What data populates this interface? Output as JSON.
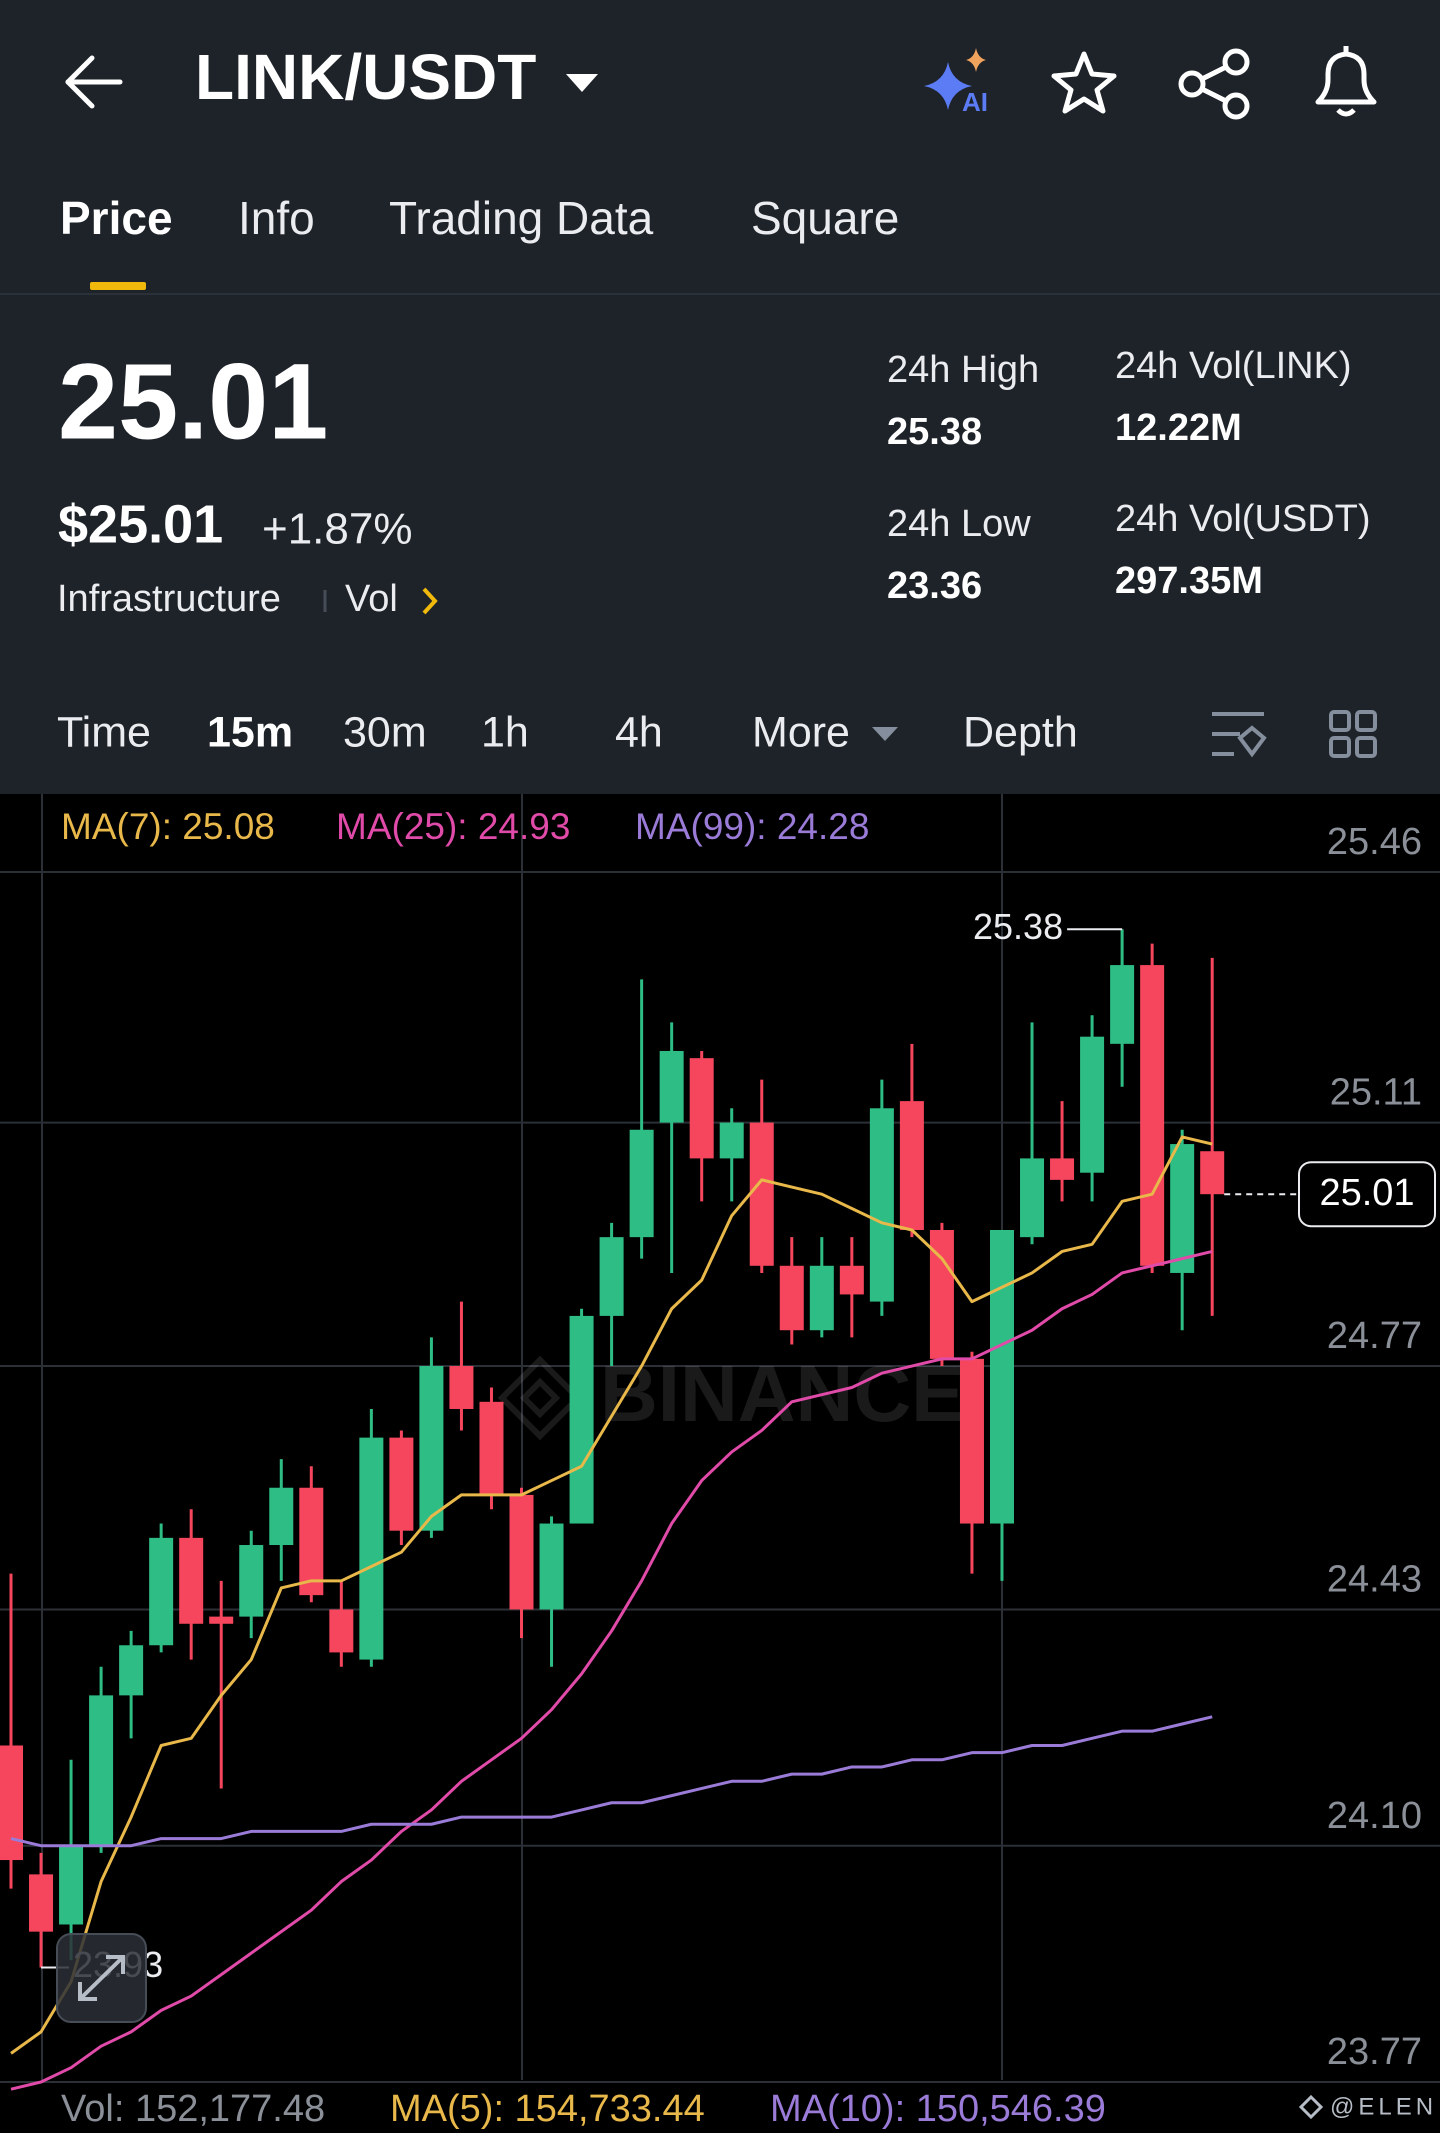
{
  "header": {
    "title": "LINK/USDT",
    "ai_badge": "AI",
    "tabs": [
      "Price",
      "Info",
      "Trading Data",
      "Square"
    ]
  },
  "ticker": {
    "price": "25.01",
    "usd_price": "$25.01",
    "change": "+1.87%",
    "tag": "Infrastructure",
    "vol_link": "Vol"
  },
  "stats": [
    {
      "label": "24h High",
      "value": "25.38"
    },
    {
      "label": "24h Vol(LINK)",
      "value": "12.22M"
    },
    {
      "label": "24h Low",
      "value": "23.36"
    },
    {
      "label": "24h Vol(USDT)",
      "value": "297.35M"
    }
  ],
  "intervals": [
    "Time",
    "15m",
    "30m",
    "1h",
    "4h",
    "More",
    "Depth"
  ],
  "chart": {
    "type": "candlestick",
    "up_color": "#2ebd85",
    "down_color": "#f6465d",
    "grid": true,
    "ylim": [
      23.77,
      25.46
    ],
    "yticks": [
      25.46,
      25.11,
      24.77,
      24.43,
      {
        "value": 24.1,
        "label": "24.10"
      },
      23.77
    ],
    "watermark": "BINANCE",
    "candles": [
      {
        "open": 24.24,
        "high": 24.48,
        "low": 24.04,
        "close": 24.08
      },
      {
        "open": 24.06,
        "high": 24.09,
        "low": 23.93,
        "close": 23.98
      },
      {
        "open": 23.99,
        "high": 24.22,
        "low": 23.94,
        "close": 24.1
      },
      {
        "open": 24.1,
        "high": 24.35,
        "low": 24.09,
        "close": 24.31
      },
      {
        "open": 24.31,
        "high": 24.4,
        "low": 24.25,
        "close": 24.38
      },
      {
        "open": 24.38,
        "high": 24.55,
        "low": 24.37,
        "close": 24.53
      },
      {
        "open": 24.53,
        "high": 24.57,
        "low": 24.36,
        "close": 24.41
      },
      {
        "open": 24.42,
        "high": 24.47,
        "low": 24.18,
        "close": 24.41
      },
      {
        "open": 24.42,
        "high": 24.54,
        "low": 24.39,
        "close": 24.52
      },
      {
        "open": 24.52,
        "high": 24.64,
        "low": 24.47,
        "close": 24.6
      },
      {
        "open": 24.6,
        "high": 24.63,
        "low": 24.44,
        "close": 24.45
      },
      {
        "open": 24.43,
        "high": 24.47,
        "low": 24.35,
        "close": 24.37
      },
      {
        "open": 24.36,
        "high": 24.71,
        "low": 24.35,
        "close": 24.67
      },
      {
        "open": 24.67,
        "high": 24.68,
        "low": 24.52,
        "close": 24.54
      },
      {
        "open": 24.54,
        "high": 24.81,
        "low": 24.53,
        "close": 24.77
      },
      {
        "open": 24.77,
        "high": 24.86,
        "low": 24.68,
        "close": 24.71
      },
      {
        "open": 24.72,
        "high": 24.74,
        "low": 24.57,
        "close": 24.59
      },
      {
        "open": 24.59,
        "high": 24.6,
        "low": 24.39,
        "close": 24.43
      },
      {
        "open": 24.43,
        "high": 24.56,
        "low": 24.35,
        "close": 24.55
      },
      {
        "open": 24.55,
        "high": 24.85,
        "low": 24.55,
        "close": 24.84
      },
      {
        "open": 24.84,
        "high": 24.97,
        "low": 24.77,
        "close": 24.95
      },
      {
        "open": 24.95,
        "high": 25.31,
        "low": 24.92,
        "close": 25.1
      },
      {
        "open": 25.11,
        "high": 25.25,
        "low": 24.9,
        "close": 25.21
      },
      {
        "open": 25.2,
        "high": 25.21,
        "low": 25.0,
        "close": 25.06
      },
      {
        "open": 25.06,
        "high": 25.13,
        "low": 25.0,
        "close": 25.11
      },
      {
        "open": 25.11,
        "high": 25.17,
        "low": 24.9,
        "close": 24.91
      },
      {
        "open": 24.91,
        "high": 24.95,
        "low": 24.8,
        "close": 24.82
      },
      {
        "open": 24.82,
        "high": 24.95,
        "low": 24.81,
        "close": 24.91
      },
      {
        "open": 24.91,
        "high": 24.95,
        "low": 24.81,
        "close": 24.87
      },
      {
        "open": 24.86,
        "high": 25.17,
        "low": 24.84,
        "close": 25.13
      },
      {
        "open": 25.14,
        "high": 25.22,
        "low": 24.95,
        "close": 24.96
      },
      {
        "open": 24.96,
        "high": 24.97,
        "low": 24.77,
        "close": 24.78
      },
      {
        "open": 24.78,
        "high": 24.79,
        "low": 24.48,
        "close": 24.55
      },
      {
        "open": 24.55,
        "high": 24.96,
        "low": 24.47,
        "close": 24.96
      },
      {
        "open": 24.95,
        "high": 25.25,
        "low": 24.94,
        "close": 25.06
      },
      {
        "open": 25.06,
        "high": 25.14,
        "low": 25.0,
        "close": 25.03
      },
      {
        "open": 25.04,
        "high": 25.26,
        "low": 25.0,
        "close": 25.23
      },
      {
        "open": 25.22,
        "high": 25.38,
        "low": 25.16,
        "close": 25.33
      },
      {
        "open": 25.33,
        "high": 25.36,
        "low": 24.9,
        "close": 24.91
      },
      {
        "open": 24.9,
        "high": 25.1,
        "low": 24.82,
        "close": 25.08
      },
      {
        "open": 25.07,
        "high": 25.34,
        "low": 24.84,
        "close": 25.01
      }
    ],
    "series": [
      {
        "name": "MA(7)",
        "legend": "MA(7): 25.08",
        "color": "#e8b84a",
        "values": [
          23.81,
          23.84,
          23.91,
          24.05,
          24.14,
          24.24,
          24.25,
          24.31,
          24.36,
          24.46,
          24.47,
          24.47,
          24.49,
          24.51,
          24.56,
          24.59,
          24.59,
          24.59,
          24.61,
          24.63,
          24.7,
          24.77,
          24.85,
          24.89,
          24.98,
          25.03,
          25.02,
          25.01,
          24.99,
          24.97,
          24.96,
          24.92,
          24.86,
          24.88,
          24.9,
          24.93,
          24.94,
          25.0,
          25.01,
          25.09,
          25.08
        ]
      },
      {
        "name": "MA(25)",
        "legend": "MA(25): 24.93",
        "color": "#e04aa8",
        "values": [
          23.76,
          23.77,
          23.79,
          23.82,
          23.84,
          23.87,
          23.89,
          23.92,
          23.95,
          23.98,
          24.01,
          24.05,
          24.08,
          24.12,
          24.15,
          24.19,
          24.22,
          24.25,
          24.29,
          24.34,
          24.4,
          24.47,
          24.55,
          24.61,
          24.65,
          24.68,
          24.72,
          24.73,
          24.74,
          24.76,
          24.77,
          24.78,
          24.78,
          24.8,
          24.82,
          24.85,
          24.87,
          24.9,
          24.91,
          24.92,
          24.93
        ]
      },
      {
        "name": "MA(99)",
        "legend": "MA(99): 24.28",
        "color": "#9b7bd8",
        "values": [
          24.11,
          24.1,
          24.1,
          24.1,
          24.1,
          24.11,
          24.11,
          24.11,
          24.12,
          24.12,
          24.12,
          24.12,
          24.13,
          24.13,
          24.13,
          24.14,
          24.14,
          24.14,
          24.14,
          24.15,
          24.16,
          24.16,
          24.17,
          24.18,
          24.19,
          24.19,
          24.2,
          24.2,
          24.21,
          24.21,
          24.22,
          24.22,
          24.23,
          24.23,
          24.24,
          24.24,
          24.25,
          24.26,
          24.26,
          24.27,
          24.28
        ]
      }
    ],
    "volume_legend": [
      {
        "text": "Vol: 152,177.48",
        "color": "#8a8f98"
      },
      {
        "text": "MA(5): 154,733.44",
        "color": "#e8b84a"
      },
      {
        "text": "MA(10): 150,546.39",
        "color": "#9b7bd8"
      }
    ],
    "credit": "@ELEN"
  }
}
